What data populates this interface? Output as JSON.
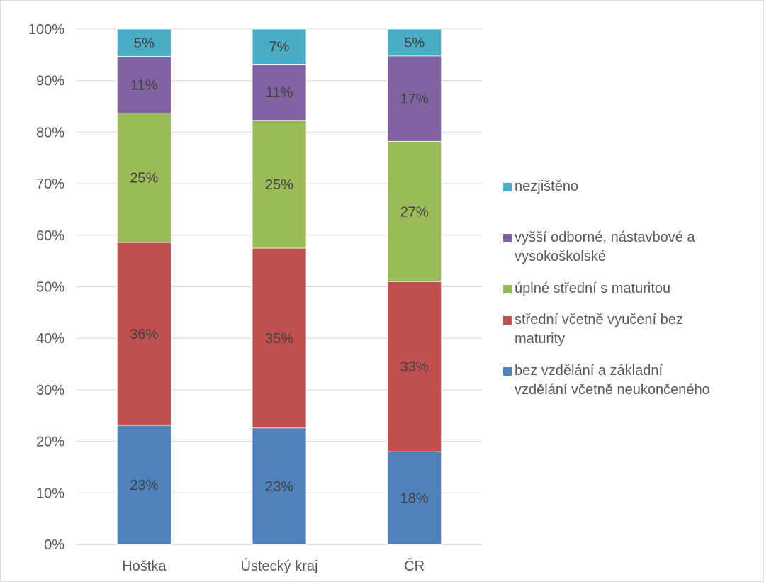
{
  "chart_data": {
    "type": "stacked_bar_100",
    "title": "",
    "xlabel": "",
    "ylabel": "",
    "ylim": [
      0,
      100
    ],
    "y_ticks": [
      "0%",
      "10%",
      "20%",
      "30%",
      "40%",
      "50%",
      "60%",
      "70%",
      "80%",
      "90%",
      "100%"
    ],
    "grid": true,
    "legend_position": "right",
    "categories": [
      "Hoštka",
      "Ústecký kraj",
      "ČR"
    ],
    "series": [
      {
        "name": "bez vzdělání a základní vzdělání včetně neukončeného",
        "color": "#4f81bd",
        "values": [
          23.1,
          22.6,
          18.0
        ],
        "labels": [
          "23%",
          "23%",
          "18%"
        ]
      },
      {
        "name": "střední včetně vyučení bez maturity",
        "color": "#c0504d",
        "values": [
          35.5,
          34.9,
          33.0
        ],
        "labels": [
          "36%",
          "35%",
          "33%"
        ]
      },
      {
        "name": "úplné střední s maturitou",
        "color": "#9bbb59",
        "values": [
          25.1,
          24.8,
          27.2
        ],
        "labels": [
          "25%",
          "25%",
          "27%"
        ]
      },
      {
        "name": "vyšší odborné, nástavbové a vysokoškolské",
        "color": "#8064a2",
        "values": [
          11.0,
          10.9,
          16.6
        ],
        "labels": [
          "11%",
          "11%",
          "17%"
        ]
      },
      {
        "name": "nezjištěno",
        "color": "#4bacc6",
        "values": [
          5.3,
          6.8,
          5.2
        ],
        "labels": [
          "5%",
          "7%",
          "5%"
        ]
      }
    ],
    "legend_lines": [
      [
        "nezjištěno"
      ],
      [
        "vyšší odborné, nástavbové a",
        "vysokoškolské"
      ],
      [
        "úplné střední s maturitou"
      ],
      [
        "střední včetně vyučení bez",
        "maturity"
      ],
      [
        "bez vzdělání a základní",
        "vzdělání včetně neukončeného"
      ]
    ]
  }
}
